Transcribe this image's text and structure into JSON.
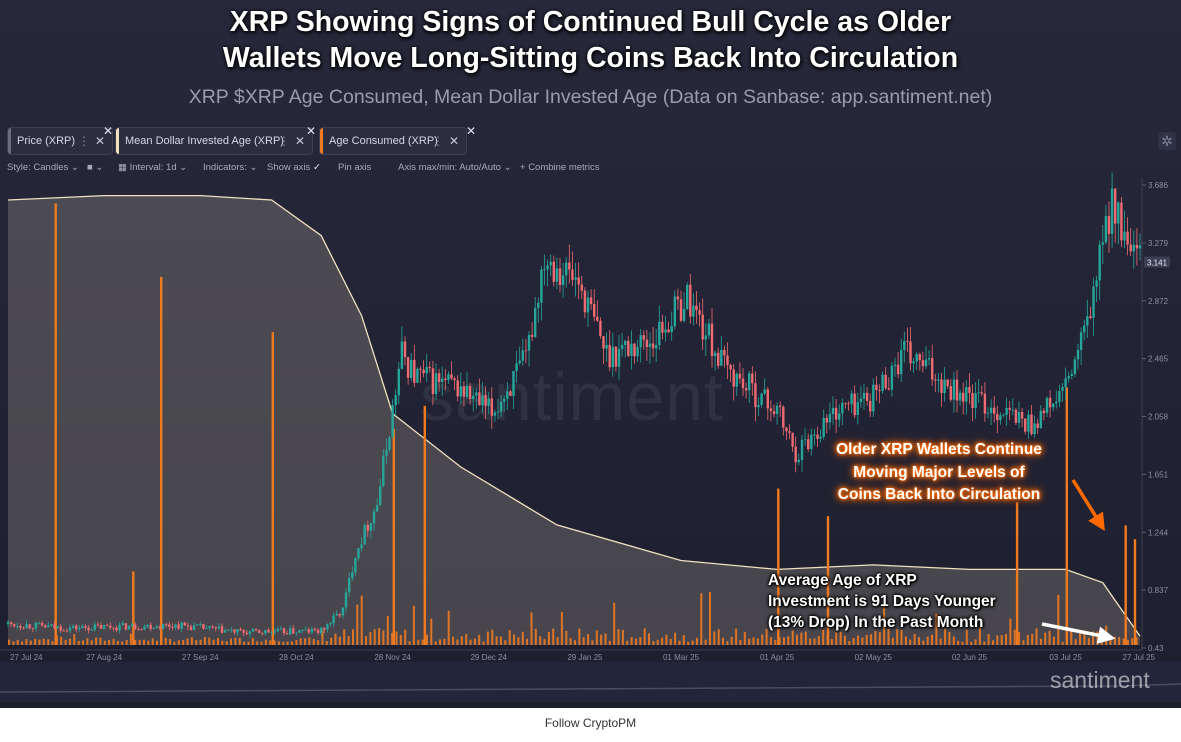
{
  "header": {
    "title_line1": "XRP Showing Signs of Continued Bull Cycle as Older",
    "title_line2": "Wallets Move Long-Sitting Coins Back Into Circulation",
    "subtitle": "XRP $XRP Age Consumed, Mean Dollar Invested Age (Data on Sanbase: app.santiment.net)"
  },
  "tabs": [
    {
      "label": "Price (XRP)",
      "color": "#6b6d80"
    },
    {
      "label": "Mean Dollar Invested Age (XRP)",
      "color": "#efe1c0"
    },
    {
      "label": "Age Consumed (XRP)",
      "color": "#f07a20"
    }
  ],
  "toolbar": {
    "style": "Style: Candles",
    "interval": "Interval: 1d",
    "indicators": "Indicators:",
    "show_axis": "Show axis",
    "pin_axis": "Pin axis",
    "axis_minmax": "Axis max/min: Auto/Auto",
    "combine": "Combine metrics"
  },
  "annotations": {
    "orange_line1": "Older XRP Wallets Continue",
    "orange_line2": "Moving Major Levels of",
    "orange_line3": "Coins Back Into Circulation",
    "white_line1": "Average Age of XRP",
    "white_line2": "Investment is 91 Days Younger",
    "white_line3": "(13% Drop) In the Past Month"
  },
  "watermark": "santiment",
  "footer": "Follow CryptoPM",
  "colors": {
    "up_candle": "#26a69a",
    "down_candle": "#ef6b72",
    "age_consumed": "#f07a20",
    "mdia_line": "#efe1c0",
    "background": "#1f2132"
  },
  "chart_data": {
    "type": "line",
    "title": "XRP $XRP Age Consumed, Mean Dollar Invested Age (Data on Sanbase: app.santiment.net)",
    "x_ticks": [
      "27 Jul 24",
      "27 Aug 24",
      "27 Sep 24",
      "28 Oct 24",
      "28 Nov 24",
      "29 Dec 24",
      "29 Jan 25",
      "01 Mar 25",
      "01 Apr 25",
      "02 May 25",
      "02 Jun 25",
      "03 Jul 25",
      "27 Jul 25"
    ],
    "y_ticks": [
      "3.686",
      "3.279",
      "2.872",
      "2.465",
      "2.058",
      "1.651",
      "1.244",
      "0.837",
      "0.43"
    ],
    "ylim": [
      0.43,
      3.686
    ],
    "last_price_label": "3.141",
    "price": {
      "x": [
        "27 Jul 24",
        "15 Aug 24",
        "01 Sep 24",
        "20 Sep 24",
        "10 Oct 24",
        "05 Nov 24",
        "12 Nov 24",
        "16 Nov 24",
        "23 Nov 24",
        "01 Dec 24",
        "05 Dec 24",
        "20 Dec 24",
        "30 Dec 24",
        "10 Jan 25",
        "16 Jan 25",
        "27 Jan 25",
        "05 Feb 25",
        "20 Feb 25",
        "03 Mar 25",
        "15 Mar 25",
        "01 Apr 25",
        "07 Apr 25",
        "20 Apr 25",
        "02 May 25",
        "12 May 25",
        "01 Jun 25",
        "22 Jun 25",
        "03 Jul 25",
        "10 Jul 25",
        "18 Jul 25",
        "23 Jul 25",
        "27 Jul 25"
      ],
      "close": [
        0.6,
        0.57,
        0.58,
        0.59,
        0.54,
        0.55,
        0.7,
        1.1,
        1.45,
        2.5,
        2.35,
        2.25,
        2.08,
        2.45,
        3.2,
        3.0,
        2.5,
        2.6,
        2.9,
        2.4,
        2.1,
        1.8,
        2.1,
        2.2,
        2.5,
        2.2,
        2.0,
        2.25,
        2.7,
        3.6,
        3.2,
        3.14
      ],
      "series_name": "Price (XRP)"
    },
    "mean_dollar_invested_age": {
      "x": [
        "27 Jul 24",
        "27 Aug 24",
        "27 Sep 24",
        "20 Oct 24",
        "05 Nov 24",
        "18 Nov 24",
        "28 Nov 24",
        "20 Dec 24",
        "20 Jan 25",
        "01 Mar 25",
        "01 Apr 25",
        "02 May 25",
        "02 Jun 25",
        "03 Jul 25",
        "15 Jul 25",
        "27 Jul 25"
      ],
      "relative": [
        1.0,
        1.01,
        1.01,
        1.0,
        0.92,
        0.74,
        0.52,
        0.4,
        0.27,
        0.19,
        0.17,
        0.18,
        0.17,
        0.17,
        0.14,
        0.02
      ],
      "series_name": "Mean Dollar Invested Age (XRP)"
    },
    "age_consumed": {
      "spikes": [
        {
          "date": "11 Aug 24",
          "relative": 0.96
        },
        {
          "date": "14 Sep 24",
          "relative": 0.8
        },
        {
          "date": "20 Oct 24",
          "relative": 0.68
        },
        {
          "date": "05 Sep 24",
          "relative": 0.16
        },
        {
          "date": "08 Dec 24",
          "relative": 0.52
        },
        {
          "date": "28 Nov 24",
          "relative": 0.47
        },
        {
          "date": "01 Apr 25",
          "relative": 0.34
        },
        {
          "date": "17 Apr 25",
          "relative": 0.28
        },
        {
          "date": "17 Jun 25",
          "relative": 0.31
        },
        {
          "date": "03 Jul 25",
          "relative": 0.56
        },
        {
          "date": "22 Jul 25",
          "relative": 0.26
        },
        {
          "date": "25 Jul 25",
          "relative": 0.23
        }
      ],
      "series_name": "Age Consumed (XRP)"
    }
  }
}
